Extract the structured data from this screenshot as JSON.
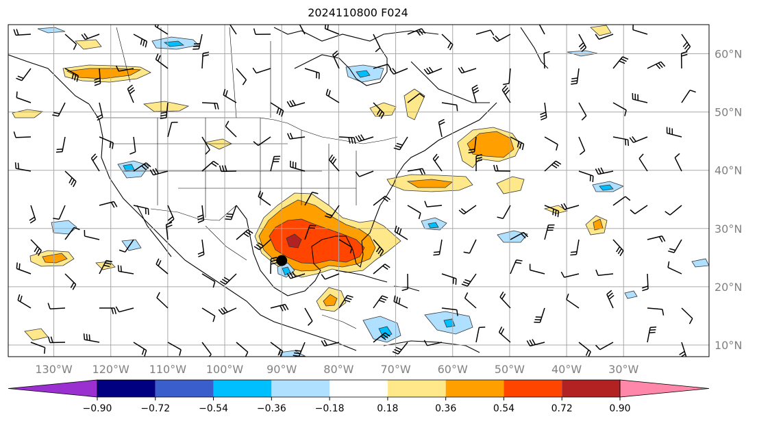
{
  "title": "2024110800 F024",
  "map": {
    "lon_range": [
      -138,
      -15
    ],
    "lat_range": [
      8,
      65
    ],
    "grid": true,
    "lon_ticks": [
      {
        "value": -130,
        "label": "130°W"
      },
      {
        "value": -120,
        "label": "120°W"
      },
      {
        "value": -110,
        "label": "110°W"
      },
      {
        "value": -100,
        "label": "100°W"
      },
      {
        "value": -90,
        "label": "90°W"
      },
      {
        "value": -80,
        "label": "80°W"
      },
      {
        "value": -70,
        "label": "70°W"
      },
      {
        "value": -60,
        "label": "60°W"
      },
      {
        "value": -50,
        "label": "50°W"
      },
      {
        "value": -40,
        "label": "40°W"
      },
      {
        "value": -30,
        "label": "30°W"
      }
    ],
    "lat_ticks": [
      {
        "value": 60,
        "label": "60°N"
      },
      {
        "value": 50,
        "label": "50°N"
      },
      {
        "value": 40,
        "label": "40°N"
      },
      {
        "value": 30,
        "label": "30°N"
      },
      {
        "value": 20,
        "label": "20°N"
      },
      {
        "value": 10,
        "label": "10°N"
      }
    ],
    "marker": {
      "name": "storm-center",
      "lon": -90,
      "lat": 24.5
    }
  },
  "colorbar": {
    "extend": "both",
    "colors": [
      "#9b30d0",
      "#000080",
      "#3a5fcd",
      "#00bfff",
      "#b0e0ff",
      "#ffffff",
      "#ffe88a",
      "#ffa000",
      "#ff4500",
      "#b22222",
      "#ff88aa"
    ],
    "ticks": [
      "−0.90",
      "−0.72",
      "−0.54",
      "−0.36",
      "−0.18",
      "0.18",
      "0.36",
      "0.54",
      "0.72",
      "0.90"
    ]
  }
}
